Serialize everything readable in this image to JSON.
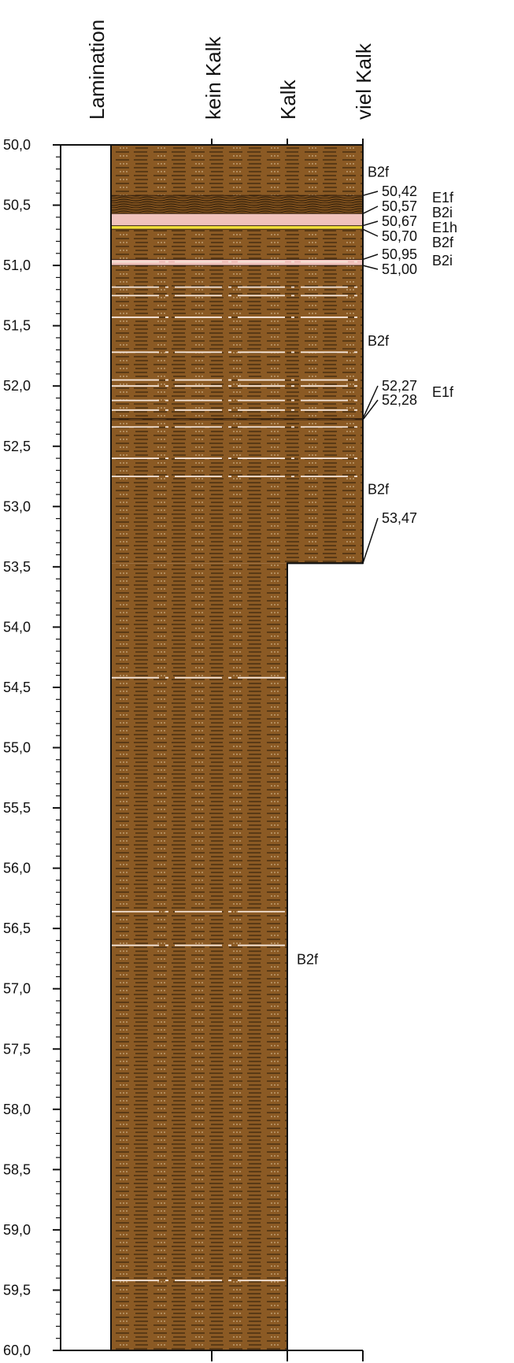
{
  "header": {
    "columns": [
      "Lamination",
      "kein Kalk",
      "Kalk",
      "viel Kalk"
    ]
  },
  "depth_axis": {
    "min": 50.0,
    "max": 60.0,
    "major_step": 0.5,
    "minor_step": 0.1,
    "labels": [
      "50,0",
      "50,5",
      "51,0",
      "51,5",
      "52,0",
      "52,5",
      "53,0",
      "53,5",
      "54,0",
      "54,5",
      "55,0",
      "55,5",
      "56,0",
      "56,5",
      "57,0",
      "57,5",
      "58,0",
      "58,5",
      "59,0",
      "59,5",
      "60,0"
    ]
  },
  "colors": {
    "sediment": "#8b5a24",
    "dash": "#2a1a08",
    "dot": "#e8d7b6",
    "pink_band": "#f0c2bc",
    "yellow_band": "#f2e03a",
    "white_line": "#f6e6da",
    "dark_band": "#5a3a18",
    "outline": "#111111"
  },
  "chart_data": {
    "type": "table",
    "calcareousness_scale": [
      "kein Kalk",
      "Kalk",
      "viel Kalk"
    ],
    "units": [
      {
        "top": 50.0,
        "bottom": 50.42,
        "code": "B2f",
        "lime": "viel Kalk"
      },
      {
        "top": 50.42,
        "bottom": 50.57,
        "code": "E1f",
        "lime": "viel Kalk"
      },
      {
        "top": 50.57,
        "bottom": 50.67,
        "code": "B2i",
        "lime": "viel Kalk"
      },
      {
        "top": 50.67,
        "bottom": 50.7,
        "code": "E1h",
        "lime": "viel Kalk"
      },
      {
        "top": 50.7,
        "bottom": 50.95,
        "code": "B2f",
        "lime": "viel Kalk"
      },
      {
        "top": 50.95,
        "bottom": 51.0,
        "code": "B2i",
        "lime": "viel Kalk"
      },
      {
        "top": 51.0,
        "bottom": 52.27,
        "code": "B2f",
        "lime": "viel Kalk"
      },
      {
        "top": 52.27,
        "bottom": 52.28,
        "code": "E1f",
        "lime": "viel Kalk"
      },
      {
        "top": 52.28,
        "bottom": 53.47,
        "code": "B2f",
        "lime": "viel Kalk"
      },
      {
        "top": 53.47,
        "bottom": 60.0,
        "code": "B2f",
        "lime": "Kalk"
      }
    ],
    "boundaries": [
      "50,42",
      "50,57",
      "50,67",
      "50,70",
      "50,95",
      "51,00",
      "52,27",
      "52,28",
      "53,47"
    ],
    "boundary_codes": [
      "E1f",
      "B2i",
      "E1h",
      "B2f",
      "B2i",
      "",
      "E1f",
      "",
      ""
    ],
    "unit_labels": [
      {
        "text": "B2f",
        "depth": 50.22
      },
      {
        "text": "B2f",
        "depth": 51.62
      },
      {
        "text": "B2f",
        "depth": 52.85
      },
      {
        "text": "B2f",
        "depth": 56.75
      }
    ],
    "thin_laminae": [
      50.97,
      51.18,
      51.25,
      51.43,
      51.72,
      51.95,
      52.0,
      52.12,
      52.2,
      52.34,
      52.6,
      52.75,
      54.42,
      56.36,
      56.64,
      59.42
    ]
  }
}
